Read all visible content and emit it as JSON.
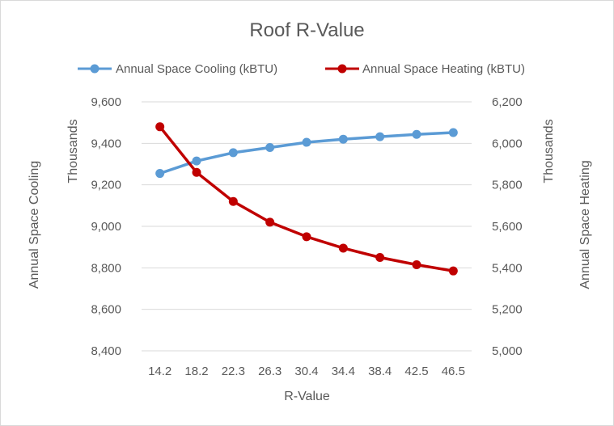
{
  "chart_data": {
    "type": "line",
    "title": "Roof R-Value",
    "xlabel": "R-Value",
    "categories": [
      "14.2",
      "18.2",
      "22.3",
      "26.3",
      "30.4",
      "34.4",
      "38.4",
      "42.5",
      "46.5"
    ],
    "legend_position": "top",
    "grid": true,
    "y_left": {
      "label": "Annual Space Cooling",
      "units": "Thousands",
      "range": [
        8400,
        9600
      ],
      "ticks": [
        8400,
        8600,
        8800,
        9000,
        9200,
        9400,
        9600
      ],
      "tick_labels": [
        "8,400",
        "8,600",
        "8,800",
        "9,000",
        "9,200",
        "9,400",
        "9,600"
      ]
    },
    "y_right": {
      "label": "Annual Space Heating",
      "units": "Thousands",
      "range": [
        5000,
        6200
      ],
      "ticks": [
        5000,
        5200,
        5400,
        5600,
        5800,
        6000,
        6200
      ],
      "tick_labels": [
        "5,000",
        "5,200",
        "5,400",
        "5,600",
        "5,800",
        "6,000",
        "6,200"
      ]
    },
    "series": [
      {
        "name": "Annual Space Cooling (kBTU)",
        "axis": "left",
        "color": "#5b9bd5",
        "values": [
          9255,
          9315,
          9355,
          9380,
          9405,
          9420,
          9432,
          9443,
          9452
        ]
      },
      {
        "name": "Annual Space Heating (kBTU)",
        "axis": "right",
        "color": "#c00000",
        "values": [
          6080,
          5860,
          5720,
          5620,
          5550,
          5495,
          5450,
          5415,
          5385
        ]
      }
    ]
  }
}
